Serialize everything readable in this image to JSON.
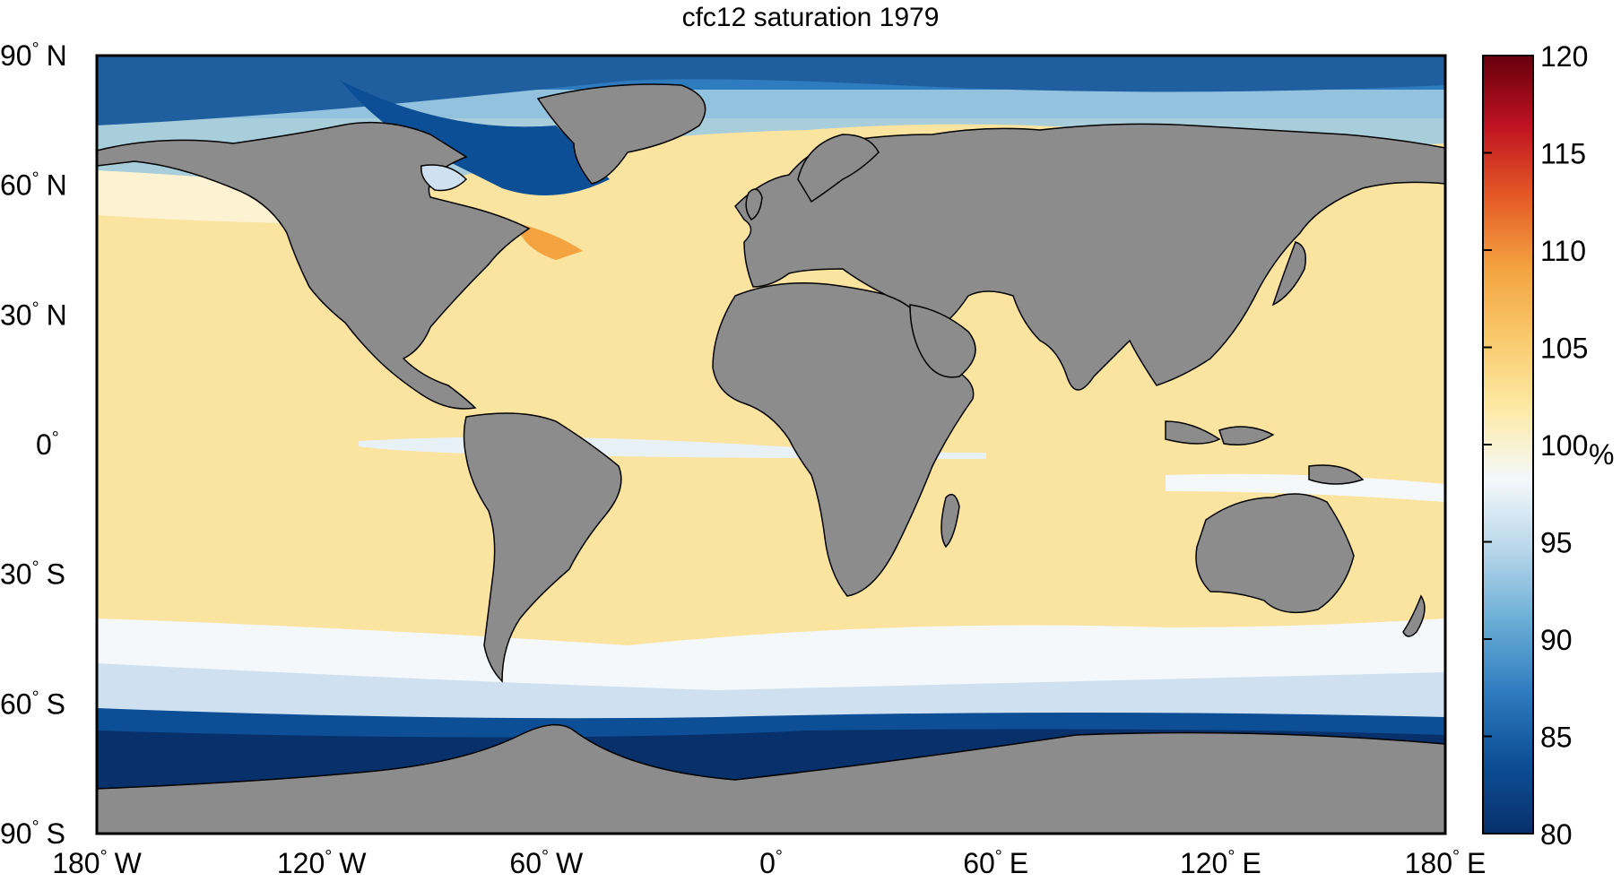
{
  "title": "cfc12 saturation 1979",
  "map": {
    "projection": "equirectangular",
    "lon_range": [
      -180,
      180
    ],
    "lat_range": [
      -90,
      90
    ],
    "land_color": "#8c8c8c",
    "lat_ticks": [
      {
        "value": 90,
        "deg": "90",
        "hemi": "N"
      },
      {
        "value": 60,
        "deg": "60",
        "hemi": "N"
      },
      {
        "value": 30,
        "deg": "30",
        "hemi": "N"
      },
      {
        "value": 0,
        "deg": "0",
        "hemi": ""
      },
      {
        "value": -30,
        "deg": "30",
        "hemi": "S"
      },
      {
        "value": -60,
        "deg": "60",
        "hemi": "S"
      },
      {
        "value": -90,
        "deg": "90",
        "hemi": "S"
      }
    ],
    "lon_ticks": [
      {
        "value": -180,
        "deg": "180",
        "hemi": "W"
      },
      {
        "value": -120,
        "deg": "120",
        "hemi": "W"
      },
      {
        "value": -60,
        "deg": "60",
        "hemi": "W"
      },
      {
        "value": 0,
        "deg": "0",
        "hemi": ""
      },
      {
        "value": 60,
        "deg": "60",
        "hemi": "E"
      },
      {
        "value": 120,
        "deg": "120",
        "hemi": "E"
      },
      {
        "value": 180,
        "deg": "180",
        "hemi": "E"
      }
    ]
  },
  "colorbar": {
    "min": 80,
    "max": 120,
    "ticks": [
      "80",
      "85",
      "90",
      "95",
      "100",
      "105",
      "110",
      "115",
      "120"
    ],
    "unit": "%",
    "colors": [
      "#08306b",
      "#0d4f96",
      "#2f7bbf",
      "#6aaed6",
      "#b7d6ea",
      "#f4f8fb",
      "#fdeaa6",
      "#f9c96b",
      "#f4a340",
      "#e45a26",
      "#c01322",
      "#67000d"
    ]
  }
}
